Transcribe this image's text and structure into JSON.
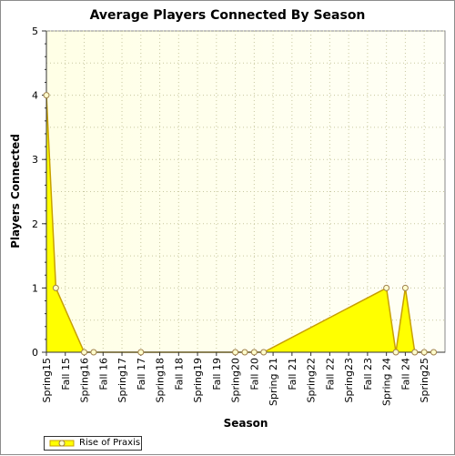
{
  "chart_data": {
    "type": "area",
    "title": "Average Players Connected By Season",
    "xlabel": "Season",
    "ylabel": "Players Connected",
    "ylim": [
      0,
      5
    ],
    "yticks": [
      0,
      1,
      2,
      3,
      4,
      5
    ],
    "grid": true,
    "legend_position": "bottom-left",
    "colors": {
      "fill": "#ffff00",
      "line": "#c8a000",
      "marker_fill": "#ffffcc",
      "marker_edge": "#a0804f",
      "plot_bg_left": "#ffffe6",
      "plot_bg_right": "#fffff6",
      "grid": "#c8c8a0"
    },
    "categories": [
      "Spring15",
      "Fall 15",
      "Spring16",
      "Fall 16",
      "Spring17",
      "Fall 17",
      "Spring18",
      "Fall 18",
      "Spring19",
      "Fall 19",
      "Spring20",
      "Fall 20",
      "Spring 21",
      "Fall 21",
      "Spring22",
      "Fall 22",
      "Spring23",
      "Fall 23",
      "Spring 24",
      "Fall 24",
      "Spring25"
    ],
    "series": [
      {
        "name": "Rise of Praxis",
        "points": [
          {
            "x": 2015.0,
            "y": 4
          },
          {
            "x": 2015.25,
            "y": 1
          },
          {
            "x": 2016.0,
            "y": 0
          },
          {
            "x": 2016.25,
            "y": 0
          },
          {
            "x": 2017.5,
            "y": 0
          },
          {
            "x": 2020.0,
            "y": 0
          },
          {
            "x": 2020.25,
            "y": 0
          },
          {
            "x": 2020.5,
            "y": 0
          },
          {
            "x": 2020.75,
            "y": 0
          },
          {
            "x": 2024.0,
            "y": 1
          },
          {
            "x": 2024.25,
            "y": 0
          },
          {
            "x": 2024.5,
            "y": 1
          },
          {
            "x": 2024.75,
            "y": 0
          },
          {
            "x": 2025.0,
            "y": 0
          },
          {
            "x": 2025.25,
            "y": 0
          }
        ]
      }
    ]
  }
}
